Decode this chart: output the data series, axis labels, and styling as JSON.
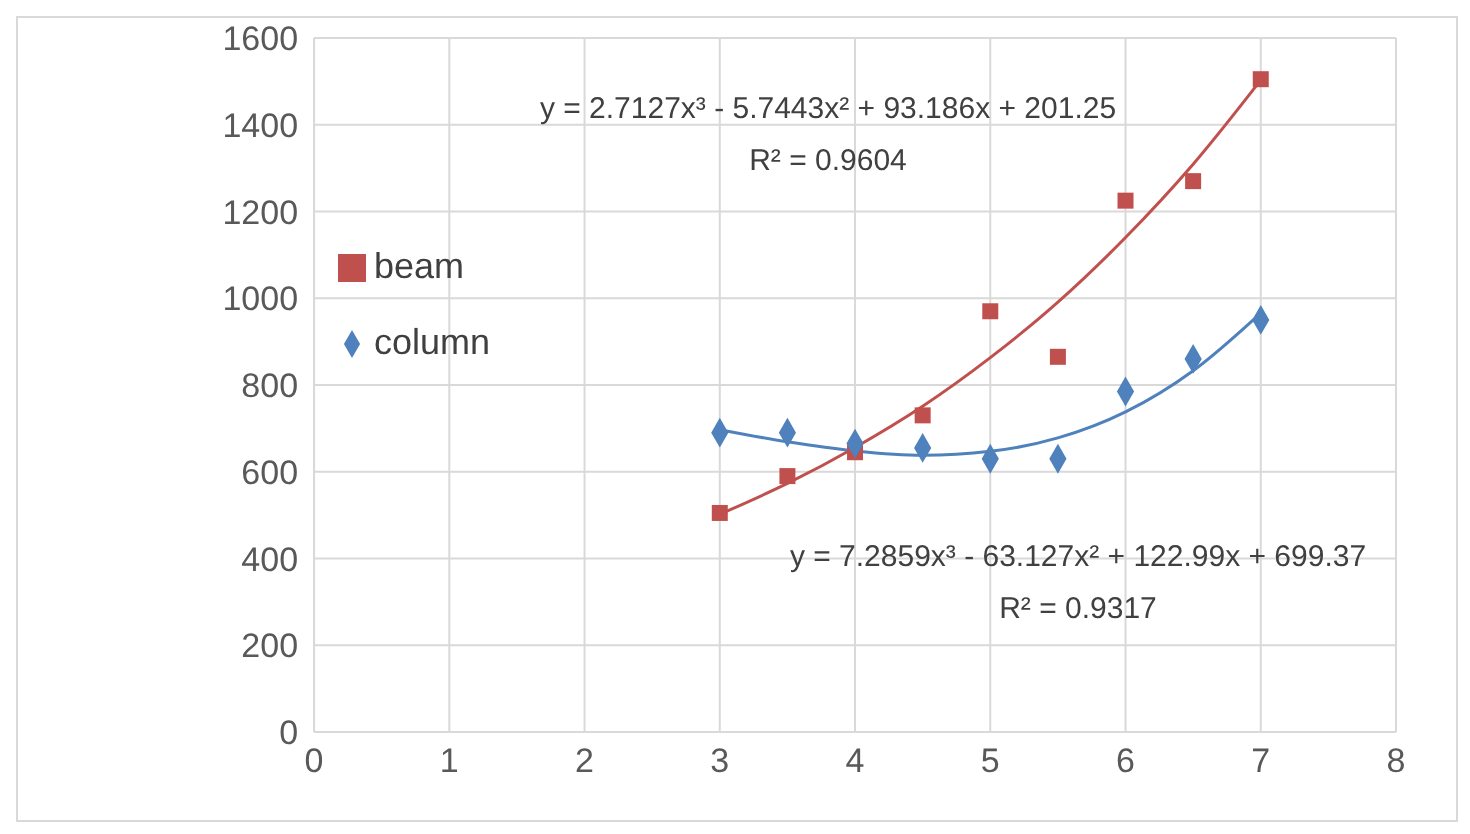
{
  "chart_data": {
    "type": "scatter",
    "x": [
      3,
      3.5,
      4,
      4.5,
      5,
      5.5,
      6,
      6.5,
      7
    ],
    "series": [
      {
        "name": "beam",
        "color": "#c0504d",
        "marker": "square",
        "values": [
          505,
          590,
          645,
          730,
          970,
          865,
          1225,
          1270,
          1505
        ]
      },
      {
        "name": "column",
        "color": "#4f81bd",
        "marker": "diamond",
        "values": [
          690,
          690,
          665,
          655,
          630,
          630,
          785,
          860,
          950
        ]
      },
      {
        "type": "line",
        "color": "#c0504d",
        "marker": "none",
        "values": [
          502,
          573,
          656,
          751,
          863,
          991,
          1140,
          1309,
          1503
        ]
      },
      {
        "type": "line",
        "color": "#4f81bd",
        "marker": "none",
        "values": [
          697,
          669,
          648,
          638,
          647,
          678,
          738,
          833,
          966
        ]
      }
    ],
    "xlim": [
      0,
      8
    ],
    "xticks": [
      0,
      1,
      2,
      3,
      4,
      5,
      6,
      7,
      8
    ],
    "ylim": [
      0,
      1600
    ],
    "yticks": [
      0,
      200,
      400,
      600,
      800,
      1000,
      1200,
      1400,
      1600
    ],
    "grid": true,
    "legend": "left",
    "annotations": [
      "y = 2.7127x³ - 5.7443x² + 93.186x + 201.25",
      "R² = 0.9604",
      "y = 7.2859x³ - 63.127x² + 122.99x + 699.37",
      "R² = 0.9317"
    ]
  }
}
